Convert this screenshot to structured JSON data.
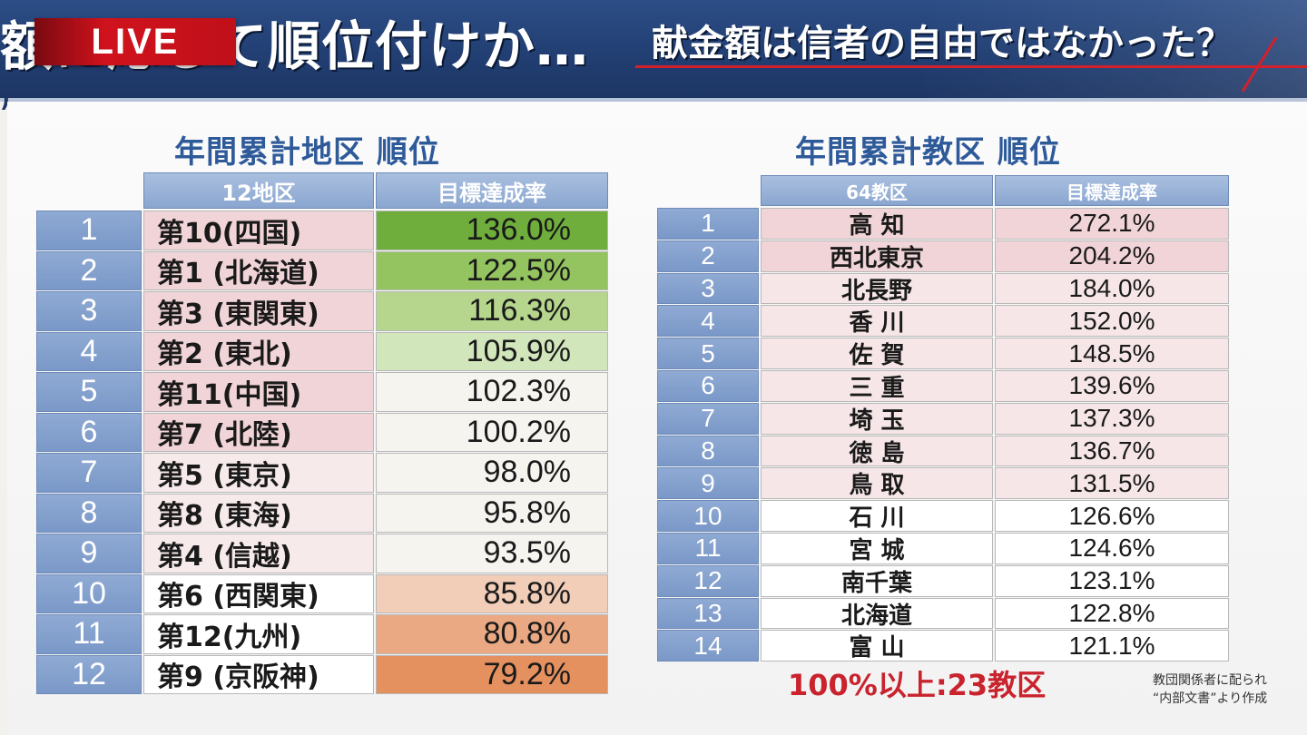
{
  "header": {
    "live_label": "LIVE",
    "headline": "額に応じて順位付けか…",
    "subheadline": "献金額は信者の自由ではなかった？",
    "partial_paren": ")"
  },
  "left": {
    "title": "年間累計地区 順位",
    "col_name": "12地区",
    "col_value": "目標達成率",
    "rows": [
      {
        "rank": "1",
        "name": "第10(四国)",
        "value": "136.0%"
      },
      {
        "rank": "2",
        "name": "第1 (北海道)",
        "value": "122.5%"
      },
      {
        "rank": "3",
        "name": "第3 (東関東)",
        "value": "116.3%"
      },
      {
        "rank": "4",
        "name": "第2 (東北)",
        "value": "105.9%"
      },
      {
        "rank": "5",
        "name": "第11(中国)",
        "value": "102.3%"
      },
      {
        "rank": "6",
        "name": "第7 (北陸)",
        "value": "100.2%"
      },
      {
        "rank": "7",
        "name": "第5 (東京)",
        "value": "98.0%"
      },
      {
        "rank": "8",
        "name": "第8 (東海)",
        "value": "95.8%"
      },
      {
        "rank": "9",
        "name": "第4 (信越)",
        "value": "93.5%"
      },
      {
        "rank": "10",
        "name": "第6 (西関東)",
        "value": "85.8%"
      },
      {
        "rank": "11",
        "name": "第12(九州)",
        "value": "80.8%"
      },
      {
        "rank": "12",
        "name": "第9 (京阪神)",
        "value": "79.2%"
      }
    ],
    "name_colors": [
      "#f1d4d7",
      "#f1d4d7",
      "#f1d4d7",
      "#f1d4d7",
      "#f1d4d7",
      "#f1d4d7",
      "#f7eaea",
      "#f7eaea",
      "#f7eaea",
      "#ffffff",
      "#ffffff",
      "#ffffff"
    ],
    "value_colors": [
      "#6fae3c",
      "#94c45f",
      "#b5d68c",
      "#d2e6bc",
      "#f6f4ef",
      "#f6f4ef",
      "#f6f4ef",
      "#f6f4ef",
      "#f6f4ef",
      "#f2cdb8",
      "#eaa983",
      "#e4905f"
    ]
  },
  "right": {
    "title": "年間累計教区 順位",
    "col_name": "64教区",
    "col_value": "目標達成率",
    "rows": [
      {
        "rank": "1",
        "name": "高 知",
        "value": "272.1%"
      },
      {
        "rank": "2",
        "name": "西北東京",
        "value": "204.2%"
      },
      {
        "rank": "3",
        "name": "北長野",
        "value": "184.0%"
      },
      {
        "rank": "4",
        "name": "香 川",
        "value": "152.0%"
      },
      {
        "rank": "5",
        "name": "佐 賀",
        "value": "148.5%"
      },
      {
        "rank": "6",
        "name": "三 重",
        "value": "139.6%"
      },
      {
        "rank": "7",
        "name": "埼 玉",
        "value": "137.3%"
      },
      {
        "rank": "8",
        "name": "徳 島",
        "value": "136.7%"
      },
      {
        "rank": "9",
        "name": "鳥 取",
        "value": "131.5%"
      },
      {
        "rank": "10",
        "name": "石 川",
        "value": "126.6%"
      },
      {
        "rank": "11",
        "name": "宮 城",
        "value": "124.6%"
      },
      {
        "rank": "12",
        "name": "南千葉",
        "value": "123.1%"
      },
      {
        "rank": "13",
        "name": "北海道",
        "value": "122.8%"
      },
      {
        "rank": "14",
        "name": "富 山",
        "value": "121.1%"
      }
    ],
    "row_colors": [
      "#f1d4d7",
      "#f1d4d7",
      "#f6e6e7",
      "#f6e6e7",
      "#f6e6e7",
      "#f6e6e7",
      "#f6e6e7",
      "#f6e6e7",
      "#f6e6e7",
      "#ffffff",
      "#ffffff",
      "#ffffff",
      "#ffffff",
      "#ffffff"
    ]
  },
  "footer": {
    "note": "100%以上:23教区",
    "source_line1": "教団関係者に配られ",
    "source_line2": "“内部文書”より作成"
  }
}
